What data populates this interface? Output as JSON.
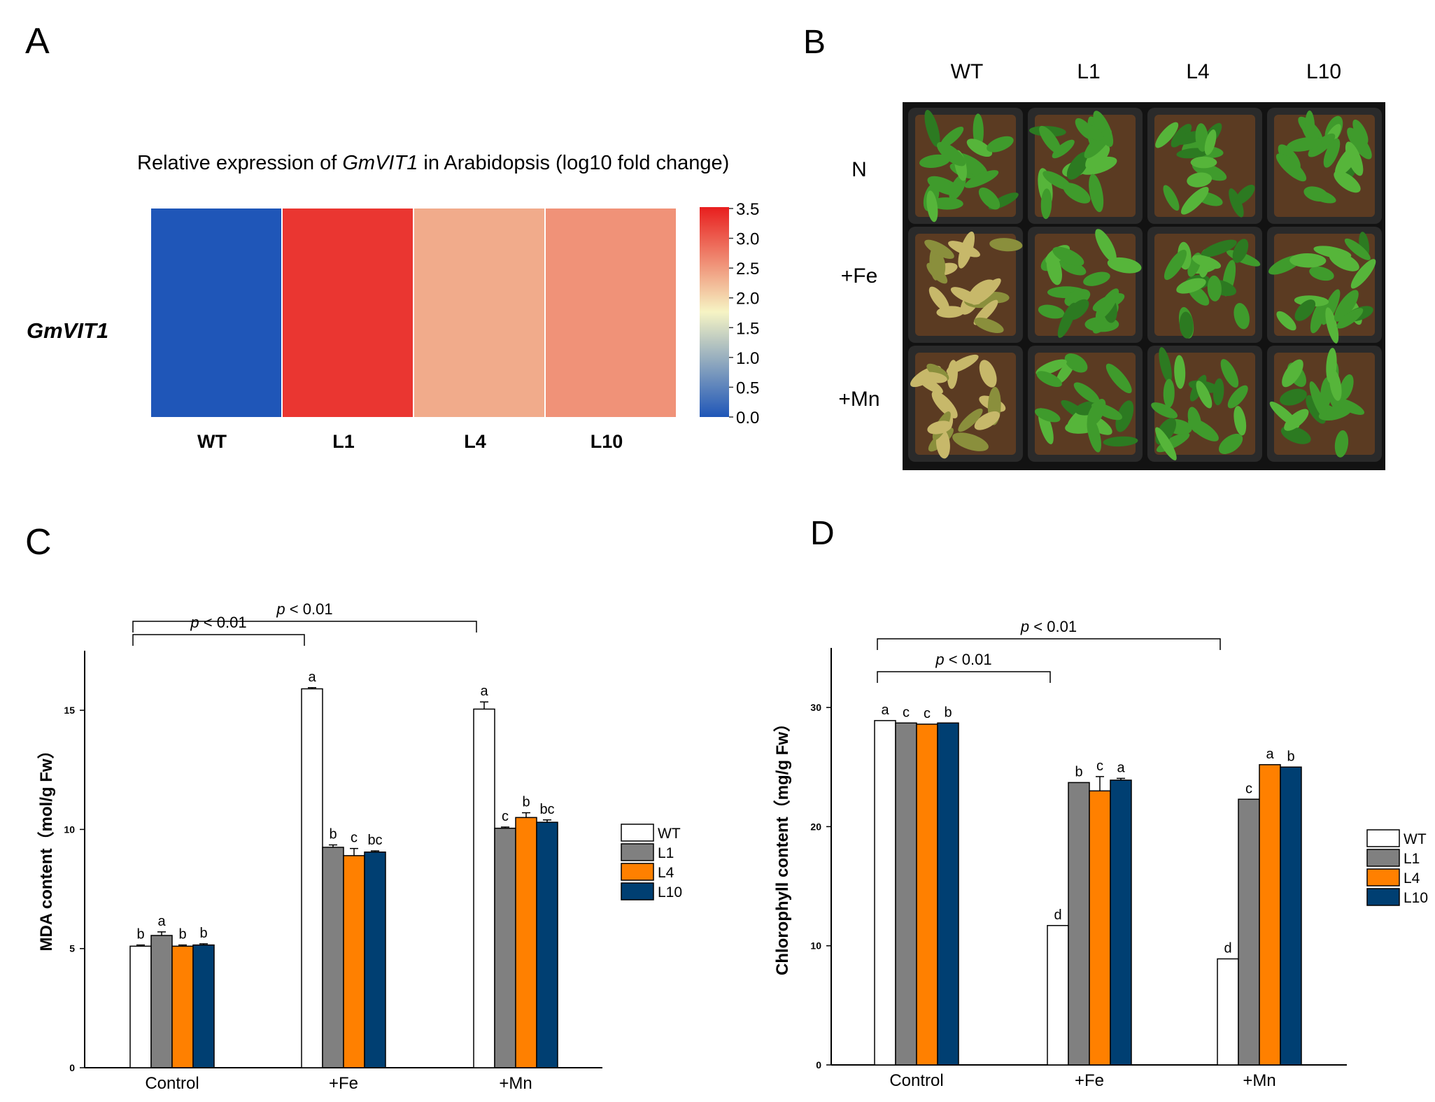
{
  "panel_labels": {
    "a": "A",
    "b": "B",
    "c": "C",
    "d": "D"
  },
  "colors": {
    "WT": "#ffffff",
    "L1": "#808080",
    "L4": "#ff8000",
    "L10": "#003f72",
    "soil": "#5b3b22",
    "tray": "#121212",
    "leaf": "#3f9b2c"
  },
  "chart_data": [
    {
      "panel": "A",
      "type": "heatmap",
      "title_prefix": "Relative expression of ",
      "title_gene": "GmVIT1",
      "title_suffix": " in Arabidopsis (log10 fold change)",
      "row_label": "GmVIT1",
      "columns": [
        "WT",
        "L1",
        "L4",
        "L10"
      ],
      "values": [
        0.0,
        3.3,
        2.35,
        2.55
      ],
      "colorbar": {
        "range": [
          0.0,
          3.5
        ],
        "ticks": [
          "3.5",
          "3.0",
          "2.5",
          "2.0",
          "1.5",
          "1.0",
          "0.5",
          "0.0"
        ],
        "stops": [
          "#1f56b8",
          "#f6f4c4",
          "#e81e1e"
        ]
      }
    },
    {
      "panel": "C",
      "type": "bar",
      "ylabel": "MDA content（mol/g Fw）",
      "ylim": [
        0,
        17.5
      ],
      "yticks": [
        "0",
        "5",
        "10",
        "15"
      ],
      "ytick_values": [
        0,
        5,
        10,
        15
      ],
      "categories": [
        "Control",
        "+Fe",
        "+Mn"
      ],
      "legend": [
        "WT",
        "L1",
        "L4",
        "L10"
      ],
      "series": [
        {
          "name": "WT",
          "values": [
            5.1,
            15.9,
            15.05
          ],
          "errors": [
            0.05,
            0.05,
            0.3
          ],
          "letters": [
            "b",
            "a",
            "a"
          ]
        },
        {
          "name": "L1",
          "values": [
            5.55,
            9.25,
            10.05
          ],
          "errors": [
            0.15,
            0.1,
            0.05
          ],
          "letters": [
            "a",
            "b",
            "c"
          ]
        },
        {
          "name": "L4",
          "values": [
            5.1,
            8.9,
            10.5
          ],
          "errors": [
            0.05,
            0.3,
            0.2
          ],
          "letters": [
            "b",
            "c",
            "b"
          ]
        },
        {
          "name": "L10",
          "values": [
            5.15,
            9.05,
            10.3
          ],
          "errors": [
            0.05,
            0.05,
            0.1
          ],
          "letters": [
            "b",
            "bc",
            "bc"
          ]
        }
      ],
      "significance": [
        {
          "label_p": "p",
          "label_rest": " < 0.01",
          "from": "Control",
          "to": "+Fe"
        },
        {
          "label_p": "p",
          "label_rest": " < 0.01",
          "from": "Control",
          "to": "+Mn"
        }
      ]
    },
    {
      "panel": "D",
      "type": "bar",
      "ylabel": "Chlorophyll content（mg/g Fw）",
      "ylim": [
        0,
        35
      ],
      "yticks": [
        "0",
        "10",
        "20",
        "30"
      ],
      "ytick_values": [
        0,
        10,
        20,
        30
      ],
      "categories": [
        "Control",
        "+Fe",
        "+Mn"
      ],
      "legend": [
        "WT",
        "L1",
        "L4",
        "L10"
      ],
      "series": [
        {
          "name": "WT",
          "values": [
            28.9,
            11.7,
            8.9
          ],
          "errors": [
            0,
            0,
            0
          ],
          "letters": [
            "a",
            "d",
            "d"
          ]
        },
        {
          "name": "L1",
          "values": [
            28.7,
            23.7,
            22.3
          ],
          "errors": [
            0,
            0,
            0
          ],
          "letters": [
            "c",
            "b",
            "c"
          ]
        },
        {
          "name": "L4",
          "values": [
            28.6,
            23.0,
            25.2
          ],
          "errors": [
            0,
            1.2,
            0
          ],
          "letters": [
            "c",
            "c",
            "a"
          ]
        },
        {
          "name": "L10",
          "values": [
            28.7,
            23.9,
            25.0
          ],
          "errors": [
            0,
            0.15,
            0
          ],
          "letters": [
            "b",
            "a",
            "b"
          ]
        }
      ],
      "significance": [
        {
          "label_p": "p",
          "label_rest": " < 0.01",
          "from": "Control",
          "to": "+Fe"
        },
        {
          "label_p": "p",
          "label_rest": " < 0.01",
          "from": "Control",
          "to": "+Mn"
        }
      ]
    }
  ],
  "photo": {
    "columns": [
      "WT",
      "L1",
      "L4",
      "L10"
    ],
    "rows": [
      "N",
      "+Fe",
      "+Mn"
    ]
  }
}
